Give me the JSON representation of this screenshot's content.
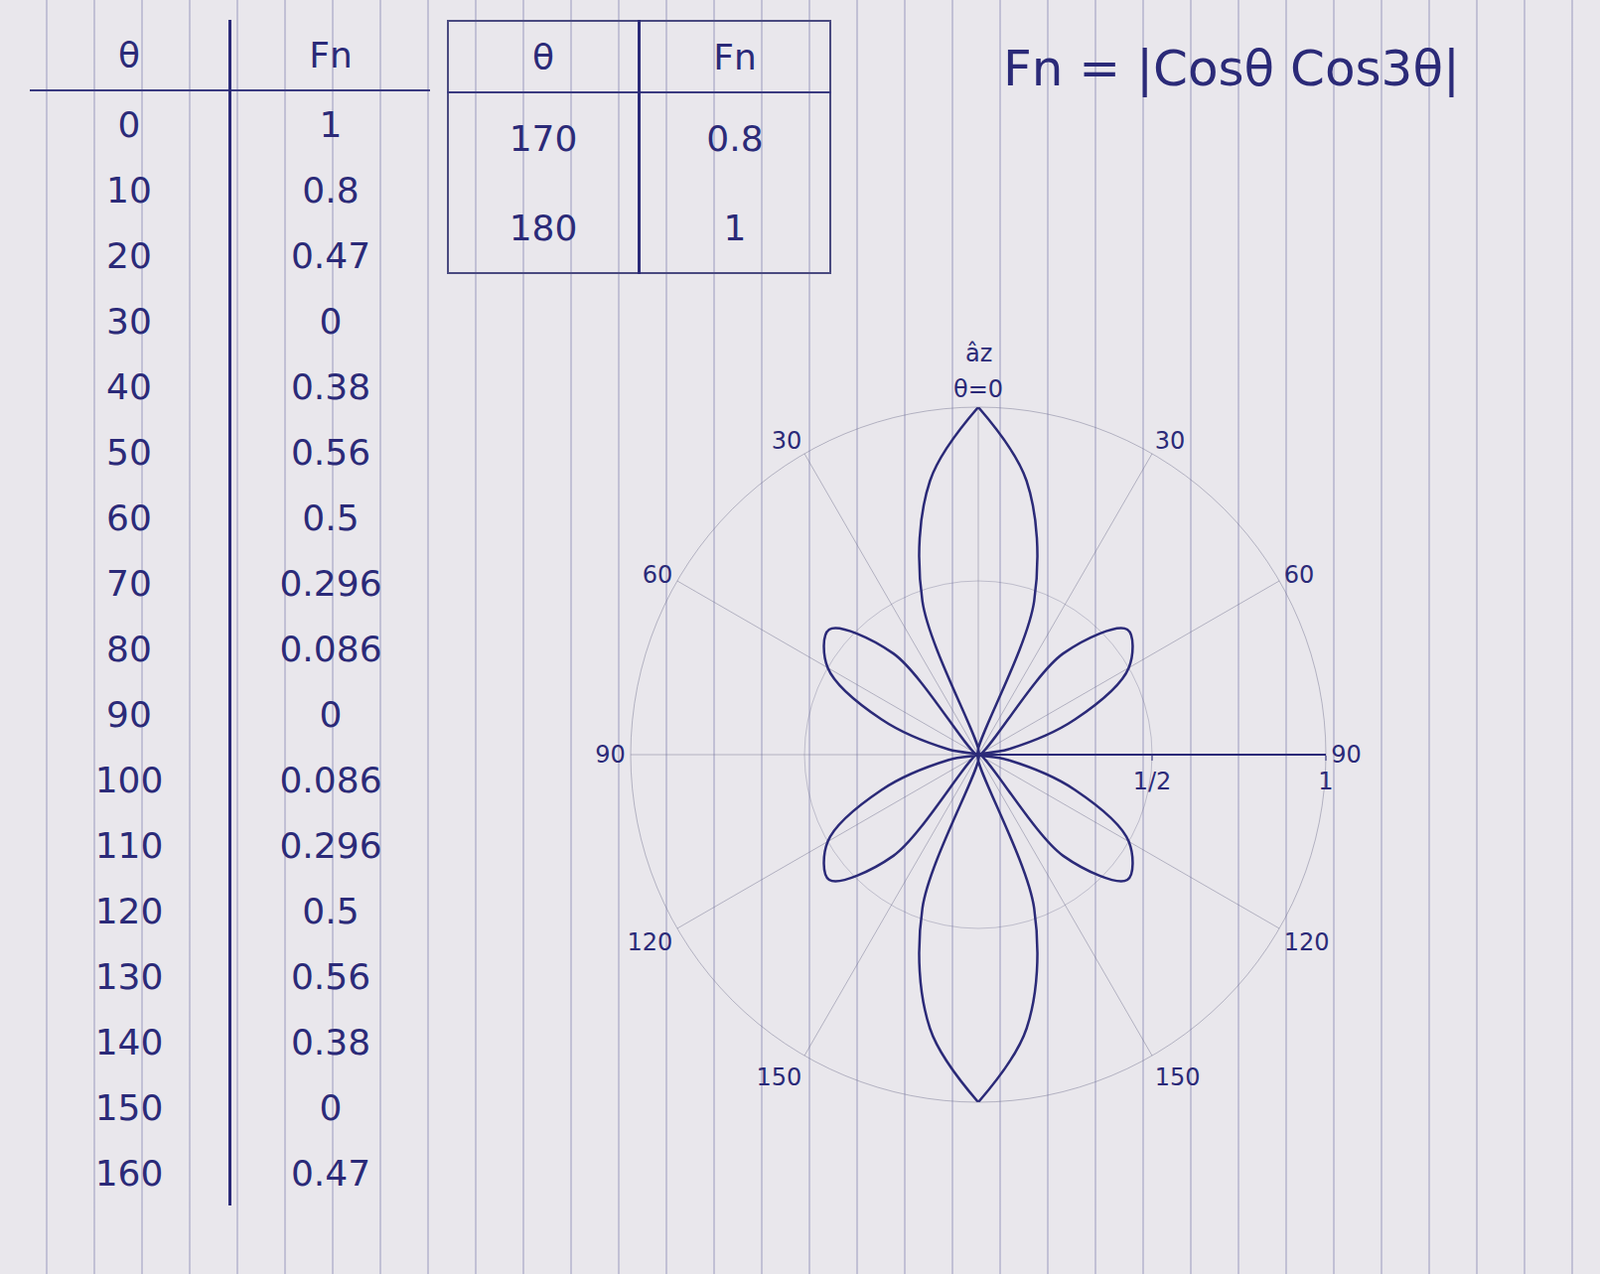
{
  "chart_data": {
    "type": "polar",
    "title": "Fn = |Cosθ Cos3θ|",
    "theta": [
      0,
      10,
      20,
      30,
      40,
      50,
      60,
      70,
      80,
      90,
      100,
      110,
      120,
      130,
      140,
      150,
      160,
      170,
      180
    ],
    "values": [
      1,
      0.8,
      0.47,
      0,
      0.38,
      0.56,
      0.5,
      0.296,
      0.086,
      0,
      0.086,
      0.296,
      0.5,
      0.56,
      0.38,
      0,
      0.47,
      0.8,
      1
    ],
    "color": "#2b2a78",
    "rlim": [
      0,
      1
    ],
    "rticks": [
      {
        "value": 0.5,
        "label": "1/2"
      },
      1
    ],
    "thetaticks": [
      {
        "value": 0,
        "label": "θ=0"
      },
      30,
      60,
      90,
      120,
      150,
      {
        "value": 210,
        "label": "150"
      },
      {
        "value": 240,
        "label": "120"
      },
      {
        "value": 270,
        "label": "90"
      },
      {
        "value": 300,
        "label": "60"
      },
      {
        "value": 330,
        "label": "30"
      }
    ],
    "annotations": [
      "âz"
    ],
    "grid": true
  },
  "table": {
    "header": [
      "θ",
      "Fn"
    ],
    "rows": [
      [
        0,
        1
      ],
      [
        10,
        0.8
      ],
      [
        20,
        0.47
      ],
      [
        30,
        0
      ],
      [
        40,
        0.38
      ],
      [
        50,
        0.56
      ],
      [
        60,
        0.5
      ],
      [
        70,
        0.296
      ],
      [
        80,
        0.086
      ],
      [
        90,
        0
      ],
      [
        100,
        0.086
      ],
      [
        110,
        0.296
      ],
      [
        120,
        0.5
      ],
      [
        130,
        0.56
      ],
      [
        140,
        0.38
      ],
      [
        150,
        0
      ],
      [
        160,
        0.47
      ],
      [
        170,
        0.8
      ],
      [
        180,
        1
      ]
    ]
  }
}
